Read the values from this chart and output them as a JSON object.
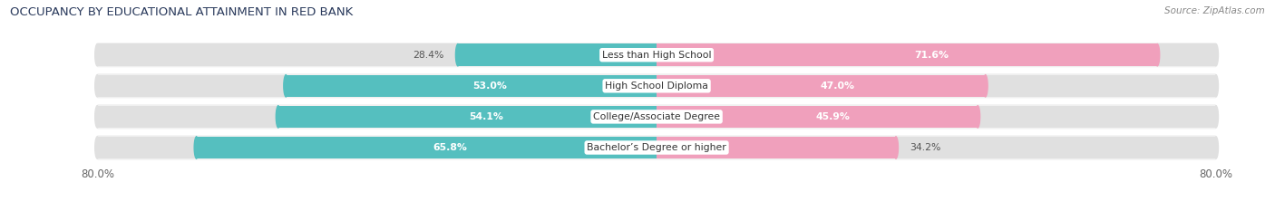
{
  "title": "OCCUPANCY BY EDUCATIONAL ATTAINMENT IN RED BANK",
  "source": "Source: ZipAtlas.com",
  "categories": [
    "Less than High School",
    "High School Diploma",
    "College/Associate Degree",
    "Bachelor’s Degree or higher"
  ],
  "owner_values": [
    28.4,
    53.0,
    54.1,
    65.8
  ],
  "renter_values": [
    71.6,
    47.0,
    45.9,
    34.2
  ],
  "owner_color": "#55bfbf",
  "renter_color": "#f0a0bc",
  "bar_bg_color": "#e0e0e0",
  "background_color": "#ffffff",
  "row_bg_color": "#f0f0f0",
  "xlim_left": -80.0,
  "xlim_right": 80.0,
  "x_tick_label_left": "80.0%",
  "x_tick_label_right": "80.0%",
  "title_color": "#2a3a5c",
  "source_color": "#888888",
  "label_color_dark": "#555555",
  "label_color_white": "#ffffff"
}
